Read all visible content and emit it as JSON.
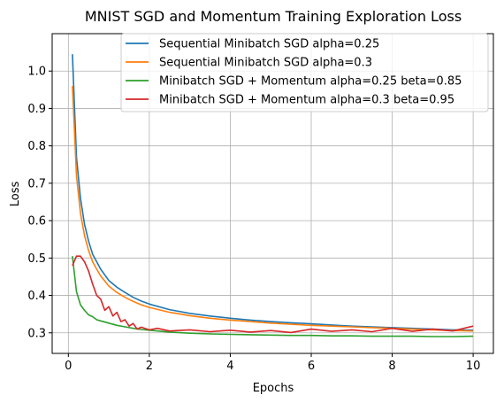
{
  "chart_data": {
    "type": "line",
    "title": "MNIST SGD and Momentum Training Exploration Loss",
    "xlabel": "Epochs",
    "ylabel": "Loss",
    "xlim": [
      -0.4,
      10.5
    ],
    "ylim": [
      0.245,
      1.1
    ],
    "xticks": [
      0,
      2,
      4,
      6,
      8,
      10
    ],
    "xtick_labels": [
      "0",
      "2",
      "4",
      "6",
      "8",
      "10"
    ],
    "yticks": [
      0.3,
      0.4,
      0.5,
      0.6,
      0.7,
      0.8,
      0.9,
      1.0
    ],
    "ytick_labels": [
      "0.3",
      "0.4",
      "0.5",
      "0.6",
      "0.7",
      "0.8",
      "0.9",
      "1.0"
    ],
    "grid": true,
    "legend_position": "top-right",
    "series": [
      {
        "name": "Sequential Minibatch SGD alpha=0.25",
        "color": "#1f77b4",
        "x": [
          0.1,
          0.2,
          0.3,
          0.4,
          0.5,
          0.6,
          0.7,
          0.8,
          1.0,
          1.2,
          1.4,
          1.6,
          1.8,
          2.0,
          2.5,
          3.0,
          3.5,
          4.0,
          4.5,
          5.0,
          5.5,
          6.0,
          6.5,
          7.0,
          7.5,
          8.0,
          8.5,
          9.0,
          9.5,
          10.0
        ],
        "y": [
          1.045,
          0.77,
          0.66,
          0.59,
          0.545,
          0.51,
          0.49,
          0.47,
          0.44,
          0.422,
          0.408,
          0.395,
          0.385,
          0.377,
          0.362,
          0.352,
          0.345,
          0.339,
          0.334,
          0.33,
          0.327,
          0.324,
          0.321,
          0.318,
          0.316,
          0.314,
          0.312,
          0.31,
          0.308,
          0.307
        ]
      },
      {
        "name": "Sequential Minibatch SGD alpha=0.3",
        "color": "#ff7f0e",
        "x": [
          0.1,
          0.2,
          0.3,
          0.4,
          0.5,
          0.6,
          0.7,
          0.8,
          1.0,
          1.2,
          1.4,
          1.6,
          1.8,
          2.0,
          2.5,
          3.0,
          3.5,
          4.0,
          4.5,
          5.0,
          5.5,
          6.0,
          6.5,
          7.0,
          7.5,
          8.0,
          8.5,
          9.0,
          9.5,
          10.0
        ],
        "y": [
          0.96,
          0.72,
          0.62,
          0.56,
          0.52,
          0.49,
          0.47,
          0.452,
          0.425,
          0.408,
          0.395,
          0.384,
          0.375,
          0.368,
          0.355,
          0.346,
          0.339,
          0.334,
          0.33,
          0.326,
          0.323,
          0.32,
          0.318,
          0.316,
          0.314,
          0.312,
          0.31,
          0.308,
          0.306,
          0.305
        ]
      },
      {
        "name": "Minibatch SGD + Momentum alpha=0.25 beta=0.85",
        "color": "#2ca02c",
        "x": [
          0.1,
          0.2,
          0.3,
          0.4,
          0.5,
          0.6,
          0.7,
          0.8,
          1.0,
          1.2,
          1.4,
          1.6,
          1.8,
          2.0,
          2.5,
          3.0,
          3.5,
          4.0,
          4.5,
          5.0,
          5.5,
          6.0,
          6.5,
          7.0,
          7.5,
          8.0,
          8.5,
          9.0,
          9.5,
          10.0
        ],
        "y": [
          0.505,
          0.41,
          0.375,
          0.36,
          0.348,
          0.343,
          0.335,
          0.332,
          0.326,
          0.32,
          0.316,
          0.312,
          0.309,
          0.307,
          0.302,
          0.299,
          0.297,
          0.296,
          0.295,
          0.294,
          0.293,
          0.293,
          0.292,
          0.292,
          0.291,
          0.291,
          0.291,
          0.29,
          0.29,
          0.291
        ]
      },
      {
        "name": "Minibatch SGD + Momentum alpha=0.3 beta=0.95",
        "color": "#d62728",
        "x": [
          0.1,
          0.2,
          0.3,
          0.4,
          0.5,
          0.6,
          0.7,
          0.8,
          0.9,
          1.0,
          1.1,
          1.2,
          1.3,
          1.4,
          1.5,
          1.6,
          1.7,
          1.8,
          2.0,
          2.2,
          2.5,
          3.0,
          3.5,
          4.0,
          4.5,
          5.0,
          5.5,
          6.0,
          6.5,
          7.0,
          7.5,
          8.0,
          8.5,
          9.0,
          9.5,
          10.0
        ],
        "y": [
          0.48,
          0.505,
          0.505,
          0.49,
          0.465,
          0.43,
          0.4,
          0.39,
          0.36,
          0.37,
          0.345,
          0.355,
          0.33,
          0.335,
          0.318,
          0.325,
          0.31,
          0.315,
          0.308,
          0.312,
          0.305,
          0.308,
          0.303,
          0.307,
          0.302,
          0.306,
          0.301,
          0.31,
          0.304,
          0.308,
          0.303,
          0.312,
          0.304,
          0.31,
          0.305,
          0.318
        ]
      }
    ]
  }
}
